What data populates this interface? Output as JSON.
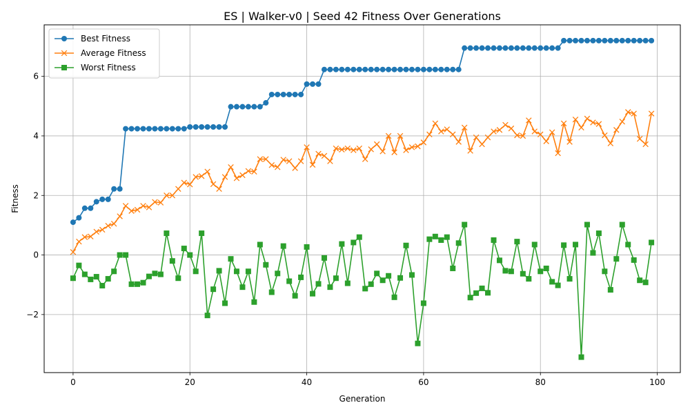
{
  "chart_data": {
    "type": "line",
    "title": "ES | Walker-v0 | Seed 42 Fitness Over Generations",
    "xlabel": "Generation",
    "ylabel": "Fitness",
    "xlim": [
      -4.95,
      103.95
    ],
    "ylim": [
      -3.95,
      7.73
    ],
    "xticks": [
      0,
      20,
      40,
      60,
      80,
      100
    ],
    "yticks": [
      -2,
      0,
      2,
      4,
      6
    ],
    "grid": true,
    "legend_position": "top-left",
    "x": [
      0,
      1,
      2,
      3,
      4,
      5,
      6,
      7,
      8,
      9,
      10,
      11,
      12,
      13,
      14,
      15,
      16,
      17,
      18,
      19,
      20,
      21,
      22,
      23,
      24,
      25,
      26,
      27,
      28,
      29,
      30,
      31,
      32,
      33,
      34,
      35,
      36,
      37,
      38,
      39,
      40,
      41,
      42,
      43,
      44,
      45,
      46,
      47,
      48,
      49,
      50,
      51,
      52,
      53,
      54,
      55,
      56,
      57,
      58,
      59,
      60,
      61,
      62,
      63,
      64,
      65,
      66,
      67,
      68,
      69,
      70,
      71,
      72,
      73,
      74,
      75,
      76,
      77,
      78,
      79,
      80,
      81,
      82,
      83,
      84,
      85,
      86,
      87,
      88,
      89,
      90,
      91,
      92,
      93,
      94,
      95,
      96,
      97,
      98,
      99
    ],
    "series": [
      {
        "name": "Best Fitness",
        "color": "#1f77b4",
        "marker": "circle",
        "values": [
          1.1,
          1.25,
          1.57,
          1.57,
          1.79,
          1.87,
          1.87,
          2.22,
          2.22,
          4.24,
          4.24,
          4.24,
          4.24,
          4.24,
          4.24,
          4.24,
          4.24,
          4.24,
          4.24,
          4.24,
          4.3,
          4.3,
          4.3,
          4.3,
          4.3,
          4.3,
          4.3,
          4.98,
          4.98,
          4.98,
          4.98,
          4.98,
          4.98,
          5.11,
          5.39,
          5.39,
          5.39,
          5.39,
          5.39,
          5.39,
          5.74,
          5.74,
          5.74,
          6.23,
          6.23,
          6.23,
          6.23,
          6.23,
          6.23,
          6.23,
          6.23,
          6.23,
          6.23,
          6.23,
          6.23,
          6.23,
          6.23,
          6.23,
          6.23,
          6.23,
          6.23,
          6.23,
          6.23,
          6.23,
          6.23,
          6.23,
          6.23,
          6.95,
          6.95,
          6.95,
          6.95,
          6.95,
          6.95,
          6.95,
          6.95,
          6.95,
          6.95,
          6.95,
          6.95,
          6.95,
          6.95,
          6.95,
          6.95,
          6.95,
          7.2,
          7.2,
          7.2,
          7.2,
          7.2,
          7.2,
          7.2,
          7.2,
          7.2,
          7.2,
          7.2,
          7.2,
          7.2,
          7.2,
          7.2,
          7.2
        ]
      },
      {
        "name": "Average Fitness",
        "color": "#ff7f0e",
        "marker": "x",
        "values": [
          0.1,
          0.45,
          0.6,
          0.62,
          0.78,
          0.85,
          0.98,
          1.05,
          1.3,
          1.65,
          1.48,
          1.52,
          1.65,
          1.6,
          1.78,
          1.76,
          2.0,
          2.0,
          2.22,
          2.43,
          2.37,
          2.62,
          2.65,
          2.8,
          2.38,
          2.22,
          2.62,
          2.95,
          2.58,
          2.68,
          2.82,
          2.8,
          3.22,
          3.22,
          3.02,
          2.95,
          3.2,
          3.15,
          2.92,
          3.15,
          3.62,
          3.03,
          3.4,
          3.33,
          3.15,
          3.58,
          3.54,
          3.58,
          3.52,
          3.58,
          3.22,
          3.55,
          3.72,
          3.48,
          4.0,
          3.45,
          4.0,
          3.52,
          3.62,
          3.65,
          3.78,
          4.05,
          4.42,
          4.15,
          4.22,
          4.05,
          3.8,
          4.28,
          3.5,
          3.95,
          3.72,
          3.95,
          4.15,
          4.2,
          4.37,
          4.25,
          4.02,
          4.0,
          4.52,
          4.15,
          4.05,
          3.82,
          4.12,
          3.42,
          4.42,
          3.8,
          4.55,
          4.28,
          4.58,
          4.45,
          4.4,
          4.02,
          3.75,
          4.2,
          4.48,
          4.8,
          4.75,
          3.9,
          3.72,
          4.75
        ]
      },
      {
        "name": "Worst Fitness",
        "color": "#2ca02c",
        "marker": "square",
        "values": [
          -0.78,
          -0.35,
          -0.65,
          -0.82,
          -0.73,
          -1.03,
          -0.8,
          -0.55,
          0.0,
          0.0,
          -0.98,
          -0.98,
          -0.93,
          -0.72,
          -0.62,
          -0.65,
          0.73,
          -0.2,
          -0.78,
          0.22,
          0.0,
          -0.55,
          0.73,
          -2.03,
          -1.15,
          -0.53,
          -1.62,
          -0.13,
          -0.55,
          -1.08,
          -0.55,
          -1.58,
          0.35,
          -0.33,
          -1.25,
          -0.62,
          0.3,
          -0.88,
          -1.37,
          -0.75,
          0.27,
          -1.3,
          -0.97,
          -0.1,
          -1.08,
          -0.78,
          0.37,
          -0.95,
          0.42,
          0.6,
          -1.13,
          -0.98,
          -0.62,
          -0.85,
          -0.7,
          -1.42,
          -0.77,
          0.32,
          -0.67,
          -2.97,
          -1.62,
          0.53,
          0.62,
          0.5,
          0.6,
          -0.45,
          0.4,
          1.02,
          -1.43,
          -1.28,
          -1.12,
          -1.27,
          0.5,
          -0.18,
          -0.53,
          -0.55,
          0.45,
          -0.63,
          -0.8,
          0.35,
          -0.55,
          -0.45,
          -0.9,
          -1.02,
          0.33,
          -0.8,
          0.35,
          -3.43,
          1.02,
          0.07,
          0.73,
          -0.55,
          -1.17,
          -0.13,
          1.02,
          0.35,
          -0.17,
          -0.85,
          -0.92,
          0.42
        ]
      }
    ]
  }
}
